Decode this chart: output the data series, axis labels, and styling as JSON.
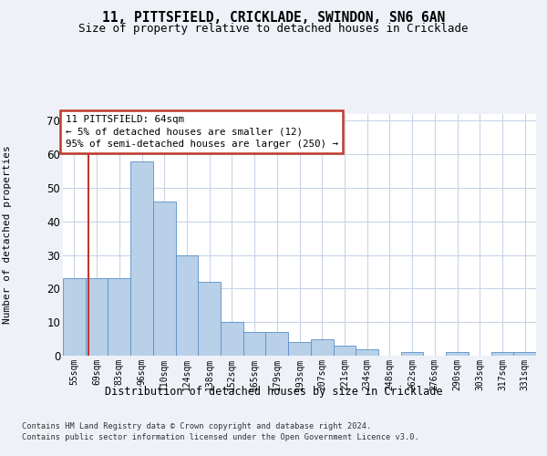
{
  "title": "11, PITTSFIELD, CRICKLADE, SWINDON, SN6 6AN",
  "subtitle": "Size of property relative to detached houses in Cricklade",
  "xlabel": "Distribution of detached houses by size in Cricklade",
  "ylabel": "Number of detached properties",
  "categories": [
    "55sqm",
    "69sqm",
    "83sqm",
    "96sqm",
    "110sqm",
    "124sqm",
    "138sqm",
    "152sqm",
    "165sqm",
    "179sqm",
    "193sqm",
    "207sqm",
    "221sqm",
    "234sqm",
    "248sqm",
    "262sqm",
    "276sqm",
    "290sqm",
    "303sqm",
    "317sqm",
    "331sqm"
  ],
  "values": [
    23,
    23,
    23,
    58,
    46,
    30,
    22,
    10,
    7,
    7,
    4,
    5,
    3,
    2,
    0,
    1,
    0,
    1,
    0,
    1,
    1
  ],
  "bar_color": "#b8d0e8",
  "bar_edge_color": "#5b8fc9",
  "ylim": [
    0,
    72
  ],
  "yticks": [
    0,
    10,
    20,
    30,
    40,
    50,
    60,
    70
  ],
  "property_line_x": 0.62,
  "property_line_color": "#c0392b",
  "annotation_text": "11 PITTSFIELD: 64sqm\n← 5% of detached houses are smaller (12)\n95% of semi-detached houses are larger (250) →",
  "annotation_box_color": "#c0392b",
  "footer_line1": "Contains HM Land Registry data © Crown copyright and database right 2024.",
  "footer_line2": "Contains public sector information licensed under the Open Government Licence v3.0.",
  "bg_color": "#eef2f8",
  "plot_bg_color": "#ffffff",
  "grid_color": "#c8d4e8"
}
